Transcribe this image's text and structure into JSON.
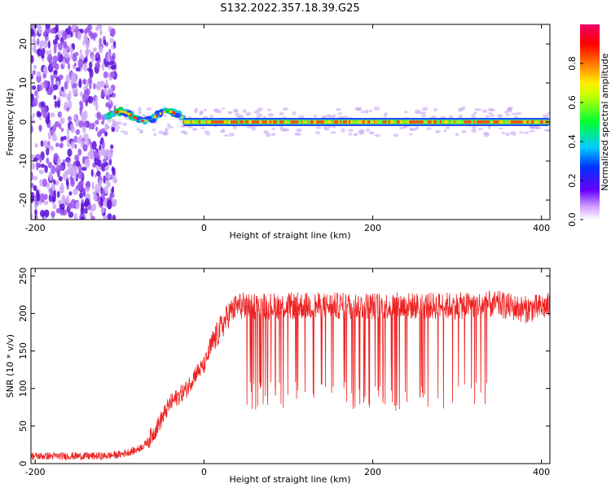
{
  "title": "S132.2022.357.18.39.G25",
  "colors": {
    "snr_line": "#ee2222",
    "axis": "#000000",
    "spectrum_dots": "#7a1fe0"
  },
  "chart_data": [
    {
      "type": "heatmap",
      "xlabel": "Height of straight line (km)",
      "ylabel": "Frequency (Hz)",
      "xlim": [
        -205,
        410
      ],
      "ylim": [
        -25,
        25
      ],
      "x_ticks": [
        "-200",
        "0",
        "200",
        "400"
      ],
      "x_tick_values": [
        -200,
        0,
        200,
        400
      ],
      "y_ticks": [
        "-20",
        "-10",
        "0",
        "10",
        "20"
      ],
      "y_tick_values": [
        -20,
        -10,
        0,
        10,
        20
      ],
      "colorbar": {
        "label": "Normalized spectral amplitude",
        "range": [
          0,
          1
        ],
        "ticks": [
          "0.0",
          "0.2",
          "0.4",
          "0.6",
          "0.8"
        ],
        "tick_values": [
          0.0,
          0.2,
          0.4,
          0.6,
          0.8
        ],
        "colormap": "rainbow (white-violet-blue-cyan-green-yellow-red-magenta)"
      },
      "features": [
        {
          "region": "noise",
          "x_range": [
            -205,
            -100
          ],
          "freq_range": [
            -25,
            25
          ],
          "amplitude": 0.05
        },
        {
          "region": "onset",
          "x_range": [
            -115,
            -25
          ],
          "freq_center": 1.5,
          "amplitude": 0.7
        },
        {
          "region": "carrier",
          "x_range": [
            -25,
            410
          ],
          "freq_center": 0,
          "amplitude": 0.9
        }
      ],
      "grid": false
    },
    {
      "type": "line",
      "xlabel": "Height of straight line (km)",
      "ylabel": "SNR (10 * v/v)",
      "xlim": [
        -205,
        410
      ],
      "ylim": [
        0,
        260
      ],
      "x_ticks": [
        "-200",
        "0",
        "200",
        "400"
      ],
      "x_tick_values": [
        -200,
        0,
        200,
        400
      ],
      "y_ticks": [
        "0",
        "50",
        "100",
        "150",
        "200",
        "250"
      ],
      "y_tick_values": [
        0,
        50,
        100,
        150,
        200,
        250
      ],
      "series": [
        {
          "x": [
            -205,
            -180,
            -150,
            -120,
            -100,
            -90,
            -80,
            -70,
            -60,
            -50,
            -40,
            -30,
            -20,
            -10,
            0,
            10,
            20,
            25,
            30,
            40,
            50,
            75,
            100,
            150,
            200,
            250,
            300,
            340,
            350,
            380,
            410
          ],
          "y": [
            10,
            10,
            10,
            10,
            12,
            15,
            18,
            25,
            40,
            60,
            80,
            90,
            100,
            120,
            130,
            160,
            180,
            190,
            200,
            210,
            210,
            210,
            210,
            210,
            210,
            210,
            210,
            212,
            212,
            205,
            210
          ],
          "dropouts": {
            "x_range": [
              45,
              340
            ],
            "min_y": 70
          }
        }
      ],
      "grid": false
    }
  ]
}
